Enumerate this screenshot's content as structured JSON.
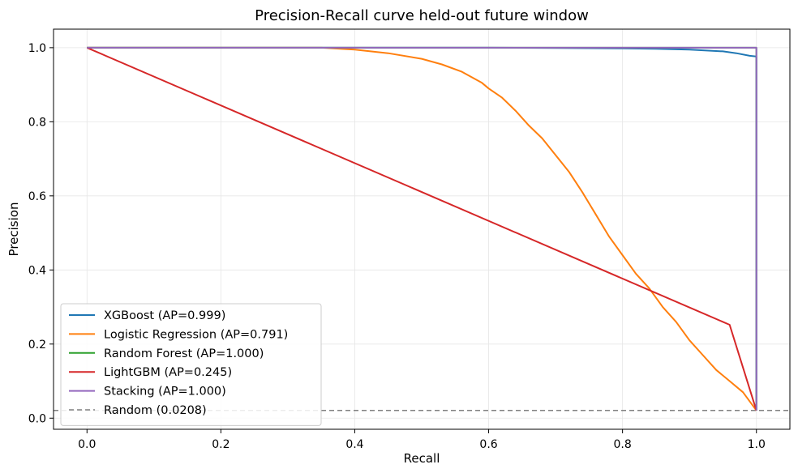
{
  "chart_data": {
    "type": "line",
    "title": "Precision-Recall curve held-out future window",
    "xlabel": "Recall",
    "ylabel": "Precision",
    "xlim": [
      -0.05,
      1.05
    ],
    "ylim": [
      -0.03,
      1.05
    ],
    "xticks": [
      "0.0",
      "0.2",
      "0.4",
      "0.6",
      "0.8",
      "1.0"
    ],
    "yticks": [
      "0.0",
      "0.2",
      "0.4",
      "0.6",
      "0.8",
      "1.0"
    ],
    "grid": true,
    "legend_position": "lower-left",
    "series": [
      {
        "name": "XGBoost (AP=0.999)",
        "color": "#1f77b4",
        "x": [
          0,
          0.3,
          0.6,
          0.7,
          0.8,
          0.85,
          0.9,
          0.95,
          0.97,
          0.99,
          1.0,
          1.0
        ],
        "y": [
          1.0,
          1.0,
          1.0,
          0.999,
          0.998,
          0.997,
          0.995,
          0.99,
          0.985,
          0.978,
          0.976,
          0.0208
        ]
      },
      {
        "name": "Logistic Regression (AP=0.791)",
        "color": "#ff7f0e",
        "x": [
          0,
          0.35,
          0.4,
          0.45,
          0.5,
          0.53,
          0.56,
          0.59,
          0.6,
          0.62,
          0.64,
          0.66,
          0.68,
          0.7,
          0.72,
          0.74,
          0.76,
          0.78,
          0.8,
          0.82,
          0.84,
          0.86,
          0.88,
          0.9,
          0.92,
          0.94,
          0.96,
          0.98,
          1.0
        ],
        "y": [
          1.0,
          1.0,
          0.995,
          0.985,
          0.97,
          0.955,
          0.935,
          0.905,
          0.89,
          0.865,
          0.83,
          0.79,
          0.755,
          0.71,
          0.665,
          0.61,
          0.55,
          0.49,
          0.44,
          0.39,
          0.35,
          0.3,
          0.26,
          0.21,
          0.17,
          0.13,
          0.1,
          0.07,
          0.0208
        ]
      },
      {
        "name": "Random Forest (AP=1.000)",
        "color": "#2ca02c",
        "x": [
          0,
          1.0,
          1.0
        ],
        "y": [
          1.0,
          1.0,
          0.0208
        ]
      },
      {
        "name": "LightGBM (AP=0.245)",
        "color": "#d62728",
        "x": [
          0,
          0.96,
          1.0
        ],
        "y": [
          1.0,
          0.252,
          0.0208
        ]
      },
      {
        "name": "Stacking (AP=1.000)",
        "color": "#9467bd",
        "x": [
          0,
          1.0,
          1.0
        ],
        "y": [
          1.0,
          1.0,
          0.0208
        ]
      }
    ],
    "baseline": {
      "name": "Random (0.0208)",
      "color": "#808080",
      "y": 0.0208,
      "style": "dashed"
    }
  }
}
